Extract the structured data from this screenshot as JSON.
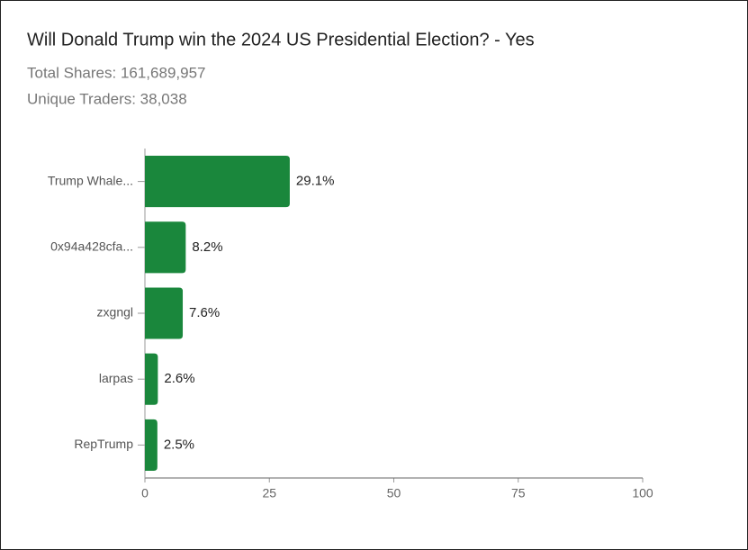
{
  "chart_data": {
    "type": "barh",
    "title": "Will Donald Trump win the 2024 US Presidential Election? - Yes",
    "subtitle": [
      "Total Shares: 161,689,957",
      "Unique Traders: 38,038"
    ],
    "categories": [
      "Trump Whale...",
      "0x94a428cfa...",
      "zxgngl",
      "larpas",
      "RepTrump"
    ],
    "values": [
      29.1,
      8.2,
      7.6,
      2.6,
      2.5
    ],
    "value_labels": [
      "29.1%",
      "8.2%",
      "7.6%",
      "2.6%",
      "2.5%"
    ],
    "color": "#1a873c",
    "xlim": [
      0,
      100
    ],
    "xticks": [
      0,
      25,
      50,
      75,
      100
    ],
    "grid": false
  }
}
